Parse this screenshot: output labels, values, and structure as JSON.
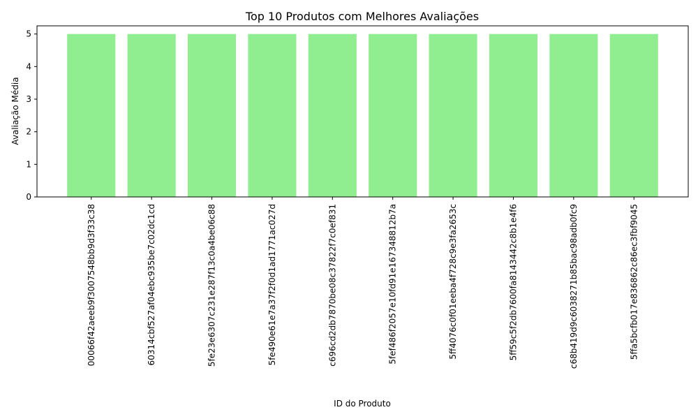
{
  "chart_data": {
    "type": "bar",
    "title": "Top 10 Produtos com Melhores Avaliações",
    "xlabel": "ID do Produto",
    "ylabel": "Avaliação Média",
    "categories": [
      "00066f42aeeb9f3007548bb9d3f33c38",
      "60314cbf527af04ebc935be7c02dc1cd",
      "5fe23e6307c231e287f13c0a4be06c88",
      "5fe490e61e7a37f2f0d1ad1771ac027d",
      "c696cd2db7870be08c37822f7c0ef831",
      "5fef486f2057e10fd91e167348812b7a",
      "5ff4076c0f01eeba4f728c9e3fa2653c",
      "5ff59c5f2db7600fa8143442c8b1e4f6",
      "c68b419d9c6038271b85bac98adb0fc9",
      "5ffa5bcfb017e836862c86ec3fbf9045"
    ],
    "values": [
      5,
      5,
      5,
      5,
      5,
      5,
      5,
      5,
      5,
      5
    ],
    "yticks": [
      "0",
      "1",
      "2",
      "3",
      "4",
      "5"
    ],
    "ylim": [
      0,
      5.25
    ],
    "bar_color": "#90ee90",
    "grid": false,
    "legend": "none"
  }
}
